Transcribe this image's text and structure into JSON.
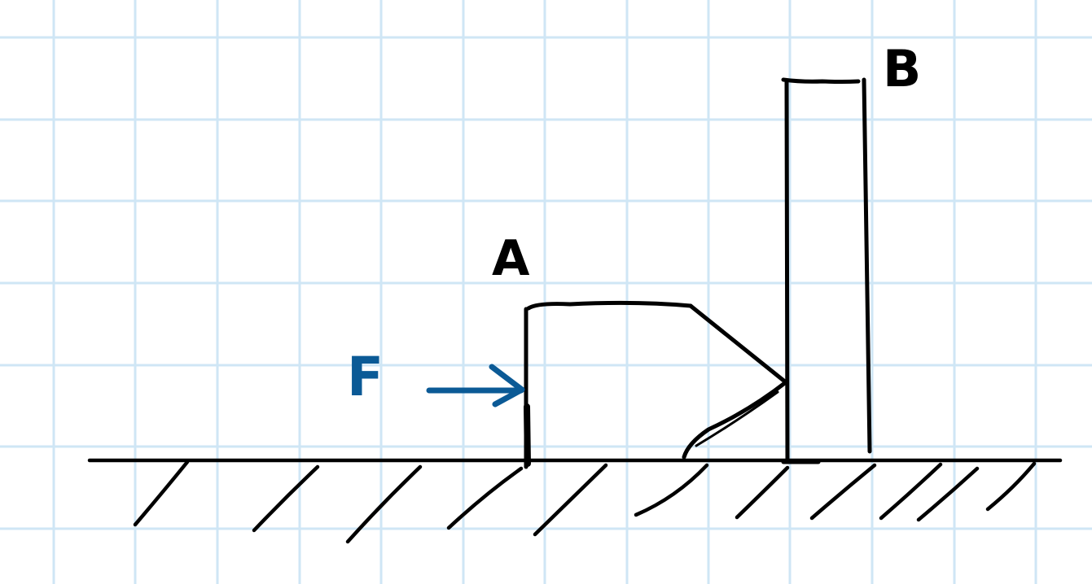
{
  "labels": {
    "point_a": "A",
    "point_b": "B",
    "force": "F"
  },
  "colors": {
    "ink": "#000000",
    "force": "#0b5a96",
    "grid": "#cfe6f5",
    "background": "#ffffff"
  },
  "grid": true
}
